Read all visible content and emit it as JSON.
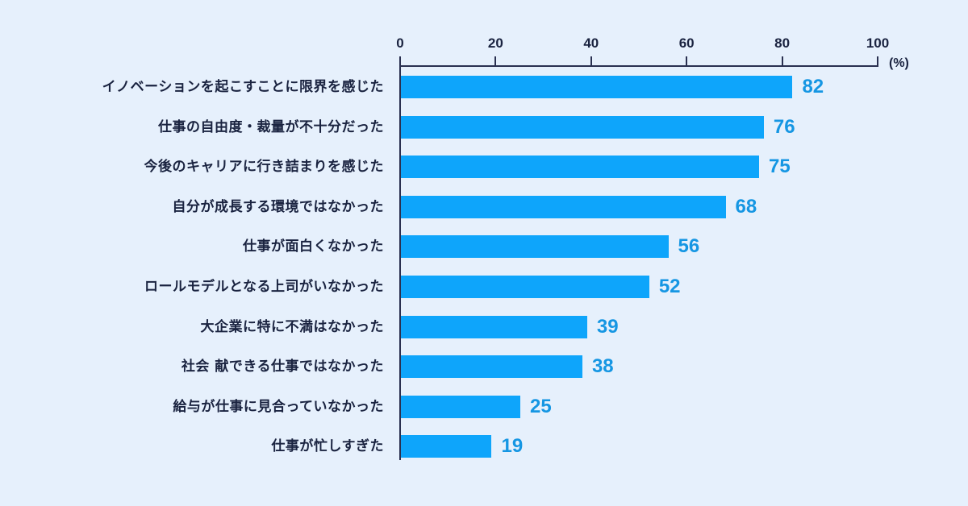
{
  "chart_data": {
    "type": "bar",
    "orientation": "horizontal",
    "title": "",
    "xlabel": "",
    "ylabel": "",
    "unit": "(%)",
    "xlim": [
      0,
      100
    ],
    "ticks": [
      "0",
      "20",
      "40",
      "60",
      "80",
      "100"
    ],
    "grid": false,
    "legend": null,
    "categories": [
      "イノベーションを起こすことに限界を感じた",
      "仕事の自由度・裁量が不十分だった",
      "今後のキャリアに行き詰まりを感じた",
      "自分が成長する環境ではなかった",
      "仕事が面白くなかった",
      "ロールモデルとなる上司がいなかった",
      "大企業に特に不満はなかった",
      "社会 献できる仕事ではなかった",
      "給与が仕事に見合っていなかった",
      "仕事が忙しすぎた"
    ],
    "values": [
      82,
      76,
      75,
      68,
      56,
      52,
      39,
      38,
      25,
      19
    ],
    "value_labels": [
      "82",
      "76",
      "75",
      "68",
      "56",
      "52",
      "39",
      "38",
      "25",
      "19"
    ],
    "colors": {
      "bar": "#0ea5fb",
      "value_label": "#1596e3",
      "axis": "#2a3050",
      "text": "#1a2340",
      "background": "#e6f0fc"
    }
  }
}
